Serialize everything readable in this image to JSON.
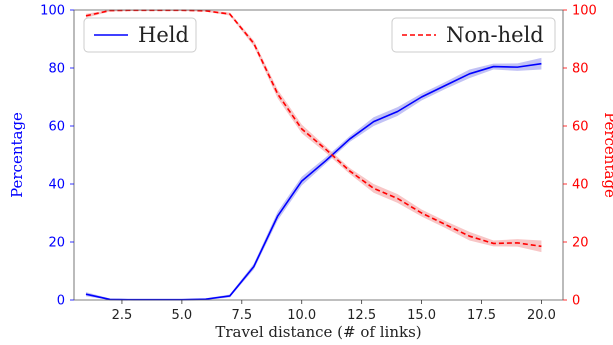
{
  "chart_data": {
    "type": "line",
    "xlabel": "Travel distance (# of links)",
    "ylabel_left": "Percentage",
    "ylabel_right": "Percentage",
    "xlim": [
      0.5,
      20.9
    ],
    "ylim": [
      0,
      100
    ],
    "x_ticks": [
      2.5,
      5.0,
      7.5,
      10.0,
      12.5,
      15.0,
      17.5,
      20.0
    ],
    "x_tick_labels": [
      "2.5",
      "5.0",
      "7.5",
      "10.0",
      "12.5",
      "15.0",
      "17.5",
      "20.0"
    ],
    "y_ticks": [
      0,
      20,
      40,
      60,
      80,
      100
    ],
    "y_tick_labels": [
      "0",
      "20",
      "40",
      "60",
      "80",
      "100"
    ],
    "grid": false,
    "left_axis_color": "#0000ff",
    "right_axis_color": "#ff0000",
    "x": [
      1,
      2,
      3,
      4,
      5,
      6,
      7,
      8,
      9,
      10,
      11,
      12,
      13,
      14,
      15,
      16,
      17,
      18,
      19,
      20
    ],
    "series": [
      {
        "name": "Held",
        "axis": "left",
        "color": "#0000ff",
        "band_color": "#9999ee",
        "style": "solid",
        "values": [
          2.0,
          0.2,
          0.1,
          0.1,
          0.1,
          0.3,
          1.4,
          11.5,
          29,
          41,
          48,
          55.5,
          61.5,
          65,
          70,
          74,
          78,
          80.5,
          80.3,
          81.5
        ],
        "lower": [
          1.3,
          0.0,
          0.0,
          0.0,
          0.0,
          0.0,
          0.9,
          10.5,
          27.5,
          39.5,
          47,
          54.5,
          60,
          63.5,
          68.8,
          72.8,
          76.5,
          79.5,
          79,
          79.5
        ],
        "upper": [
          2.7,
          0.5,
          0.3,
          0.3,
          0.3,
          0.6,
          1.9,
          12.5,
          30.5,
          42.5,
          49.2,
          56.5,
          63,
          66.5,
          71.2,
          75.2,
          79.5,
          81.5,
          81.6,
          83.5
        ]
      },
      {
        "name": "Non-held",
        "axis": "right",
        "color": "#ff0000",
        "band_color": "#f4a0a0",
        "style": "dashed",
        "values": [
          98.0,
          99.8,
          99.9,
          99.9,
          99.9,
          99.7,
          98.6,
          88.5,
          71,
          59,
          52,
          44.5,
          38.5,
          35,
          30,
          26,
          22,
          19.5,
          19.7,
          18.5
        ],
        "lower": [
          97.3,
          99.5,
          99.7,
          99.7,
          99.7,
          99.4,
          98.1,
          87.5,
          69.5,
          57.5,
          50.8,
          43.5,
          37,
          33.5,
          28.8,
          24.8,
          20.5,
          18.5,
          18.4,
          16.5
        ],
        "upper": [
          98.7,
          100,
          100,
          100,
          100,
          100,
          99.1,
          89.5,
          72.5,
          60.5,
          53,
          45.5,
          40,
          36.5,
          31.2,
          27.2,
          23.5,
          20.5,
          21,
          20.5
        ]
      }
    ],
    "legends": [
      {
        "series": "Held",
        "placement": "top-left"
      },
      {
        "series": "Non-held",
        "placement": "top-right"
      }
    ]
  }
}
